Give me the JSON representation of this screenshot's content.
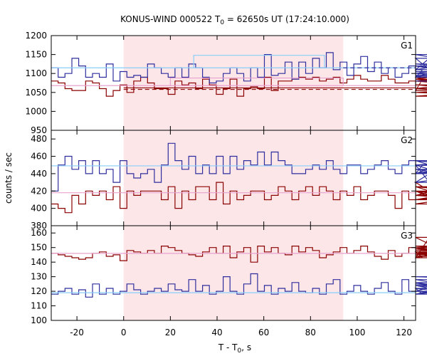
{
  "chart_data": {
    "type": "line",
    "title_prefix": "KONUS-WIND 000522 T",
    "title_sub": "0",
    "title_suffix": " = 62650s UT (17:24:10.000)",
    "xlabel_prefix": "T - T",
    "xlabel_sub": "0",
    "xlabel_suffix": ", s",
    "ylabel": "counts / sec",
    "xlim": [
      -31,
      125
    ],
    "xticks": [
      -20,
      0,
      20,
      40,
      60,
      80,
      100,
      120
    ],
    "shaded_interval": [
      0,
      94
    ],
    "colors": {
      "blue": "#2e2e9e",
      "red": "#8b0000",
      "light_blue": "#87cefa",
      "pink": "#e8a2cf",
      "shade": "#fde6e8"
    },
    "bin_start": -31,
    "bin_width": 2.944,
    "panels": [
      {
        "label": "G1",
        "ylim": [
          950,
          1200
        ],
        "yticks": [
          950,
          1000,
          1050,
          1100,
          1150,
          1200
        ],
        "blue_values": [
          1115,
          1090,
          1100,
          1140,
          1120,
          1090,
          1100,
          1090,
          1125,
          1080,
          1105,
          1090,
          1095,
          1090,
          1125,
          1115,
          1100,
          1090,
          1115,
          1090,
          1125,
          1115,
          1090,
          1075,
          1080,
          1100,
          1115,
          1100,
          1080,
          1115,
          1090,
          1150,
          1095,
          1100,
          1130,
          1085,
          1130,
          1100,
          1140,
          1115,
          1155,
          1110,
          1130,
          1095,
          1125,
          1145,
          1105,
          1130,
          1100,
          1115,
          1090,
          1100,
          1120,
          1090,
          1110,
          1140,
          1095,
          1090,
          1120,
          1100,
          1100,
          1120,
          1100,
          1090,
          1125,
          1110,
          1150,
          1105,
          1100,
          1080
        ],
        "red_values": [
          1080,
          1075,
          1060,
          1055,
          1055,
          1080,
          1075,
          1060,
          1040,
          1055,
          1070,
          1050,
          1080,
          1090,
          1075,
          1060,
          1060,
          1045,
          1080,
          1070,
          1075,
          1060,
          1085,
          1070,
          1045,
          1060,
          1085,
          1040,
          1060,
          1065,
          1060,
          1090,
          1055,
          1080,
          1080,
          1085,
          1090,
          1085,
          1090,
          1080,
          1085,
          1090,
          1075,
          1085,
          1095,
          1085,
          1080,
          1080,
          1095,
          1085,
          1075,
          1075,
          1080,
          1055,
          1085,
          1090,
          1080,
          1085,
          1080,
          1070,
          1060,
          1060,
          1050,
          1060,
          1085,
          1050,
          1040,
          1040,
          1060,
          1055
        ],
        "blue_fit": 1115,
        "blue_fit_dashed": 1115,
        "blue_step": {
          "x": [
            30,
            86
          ],
          "value": 1148
        },
        "red_fit": 1062,
        "red_fit_dashed": 1058,
        "red_step": {
          "x": [
            20,
            94
          ],
          "value": 1088
        },
        "pink_fit": 1068
      },
      {
        "label": "G2",
        "ylim": [
          380,
          490
        ],
        "yticks": [
          380,
          400,
          420,
          440,
          460,
          480
        ],
        "blue_values": [
          420,
          450,
          460,
          445,
          455,
          440,
          455,
          440,
          445,
          430,
          455,
          440,
          435,
          440,
          445,
          430,
          450,
          475,
          455,
          445,
          460,
          440,
          450,
          440,
          460,
          440,
          460,
          445,
          455,
          450,
          465,
          450,
          465,
          455,
          450,
          440,
          440,
          445,
          450,
          445,
          455,
          445,
          440,
          450,
          450,
          440,
          445,
          450,
          455,
          445,
          440,
          450,
          455,
          440,
          450,
          430,
          445,
          440,
          455,
          440,
          450,
          430,
          440,
          450,
          455,
          445,
          440,
          450,
          450,
          445
        ],
        "red_values": [
          405,
          400,
          395,
          415,
          405,
          420,
          415,
          420,
          410,
          425,
          400,
          420,
          415,
          420,
          420,
          420,
          410,
          425,
          400,
          420,
          410,
          425,
          425,
          410,
          430,
          405,
          420,
          410,
          415,
          420,
          420,
          410,
          415,
          425,
          420,
          410,
          420,
          425,
          415,
          425,
          420,
          410,
          420,
          415,
          425,
          410,
          415,
          420,
          420,
          415,
          400,
          420,
          410,
          430,
          425,
          420,
          410,
          415,
          425,
          420,
          405,
          415,
          420,
          410,
          425,
          420,
          410,
          420,
          415,
          405
        ],
        "blue_fit": 449,
        "red_fit": 418
      },
      {
        "label": "G3",
        "ylim": [
          100,
          165
        ],
        "yticks": [
          100,
          110,
          120,
          130,
          140,
          150,
          160
        ],
        "blue_values": [
          118,
          120,
          122,
          118,
          121,
          116,
          125,
          118,
          122,
          118,
          120,
          125,
          121,
          118,
          120,
          122,
          120,
          125,
          121,
          120,
          128,
          120,
          124,
          118,
          120,
          130,
          120,
          118,
          125,
          132,
          120,
          124,
          118,
          122,
          120,
          126,
          120,
          119,
          122,
          118,
          125,
          128,
          118,
          120,
          124,
          120,
          118,
          122,
          126,
          120,
          118,
          128,
          120,
          122,
          118,
          120,
          124,
          120,
          126,
          122,
          118,
          124,
          120,
          118,
          130,
          128,
          118,
          125,
          120,
          118
        ],
        "red_values": [
          146,
          145,
          144,
          143,
          142,
          143,
          146,
          147,
          144,
          145,
          141,
          148,
          147,
          146,
          148,
          146,
          151,
          150,
          148,
          146,
          145,
          144,
          147,
          150,
          146,
          151,
          143,
          147,
          150,
          140,
          151,
          147,
          150,
          146,
          145,
          151,
          147,
          150,
          148,
          143,
          145,
          147,
          150,
          146,
          148,
          151,
          147,
          144,
          142,
          148,
          144,
          146,
          150,
          147,
          143,
          157,
          150,
          146,
          143,
          149,
          146,
          151,
          147,
          145,
          150,
          144,
          148,
          146,
          149,
          146
        ],
        "blue_fit": 119,
        "red_fit": 146
      }
    ]
  }
}
